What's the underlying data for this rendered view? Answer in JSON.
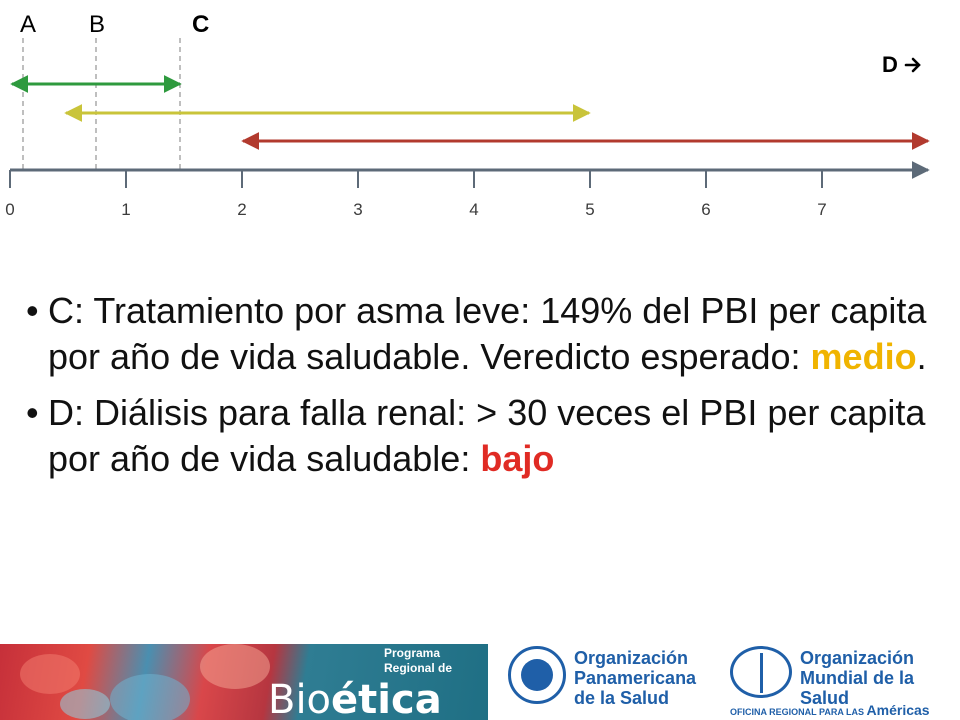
{
  "diagram": {
    "markers": {
      "a": "A",
      "b": "B",
      "c": "C",
      "d": "D"
    },
    "d_arrow_icon": "right-arrow-icon",
    "axis_ticks": [
      "0",
      "1",
      "2",
      "3",
      "4",
      "5",
      "6",
      "7"
    ],
    "colors": {
      "green": "#2e9a3e",
      "yellow": "#c9c43a",
      "red": "#b23a2e",
      "axis": "#5d6a78",
      "dashed": "#bfbfbf"
    }
  },
  "bullets": [
    {
      "text": "C: Tratamiento por asma leve: 149% del PBI per capita por año de vida saludable. Veredicto esperado: ",
      "highlight": "medio",
      "tail": "."
    },
    {
      "text": "D: Diálisis para falla renal: > 30 veces el PBI per capita por año de vida saludable: ",
      "highlight": "bajo",
      "tail": ""
    }
  ],
  "footer": {
    "bioetica": {
      "program_line1": "Programa",
      "program_line2": "Regional de",
      "bio_prefix": "Bio",
      "bio_suffix": "ética"
    },
    "ops": {
      "line1": "Organización",
      "line2": "Panamericana",
      "line3": "de la Salud"
    },
    "oms": {
      "line1": "Organización",
      "line2": "Mundial de la Salud",
      "office": "OFICINA REGIONAL PARA LAS",
      "region": "Américas"
    }
  }
}
